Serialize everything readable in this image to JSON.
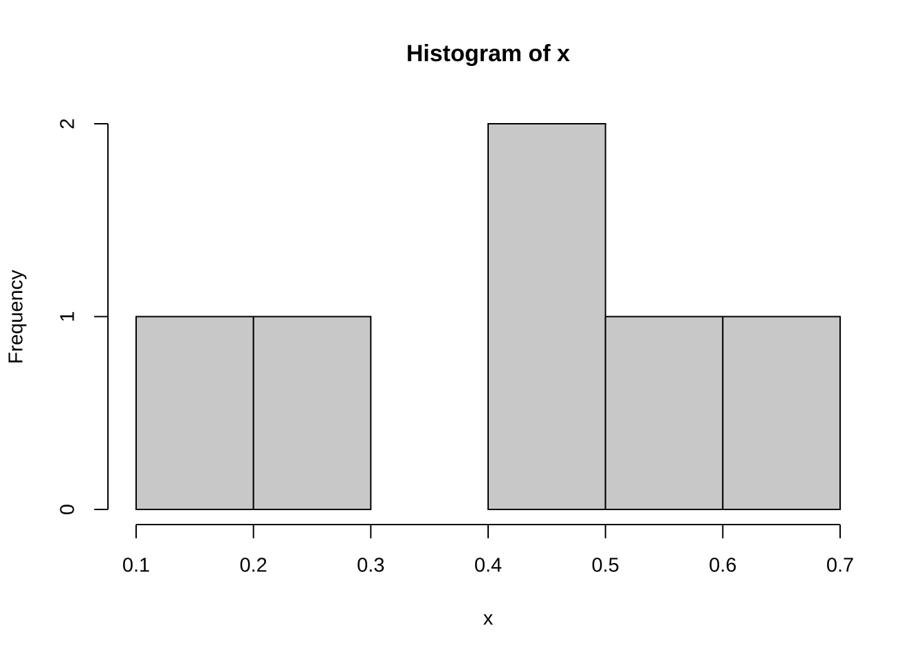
{
  "chart_data": {
    "type": "histogram",
    "title": "Histogram of x",
    "x_label": "x",
    "y_label": "Frequency",
    "bins": [
      0.1,
      0.2,
      0.3,
      0.4,
      0.5,
      0.6,
      0.7
    ],
    "counts": [
      1,
      1,
      0,
      2,
      1,
      1
    ],
    "color": "#c8c8c8",
    "xlim": [
      0.1,
      0.7
    ],
    "xticks": [
      0.1,
      0.2,
      0.3,
      0.4,
      0.5,
      0.6,
      0.7
    ],
    "ylim": [
      0,
      2
    ],
    "yticks": [
      0,
      1,
      2
    ]
  }
}
